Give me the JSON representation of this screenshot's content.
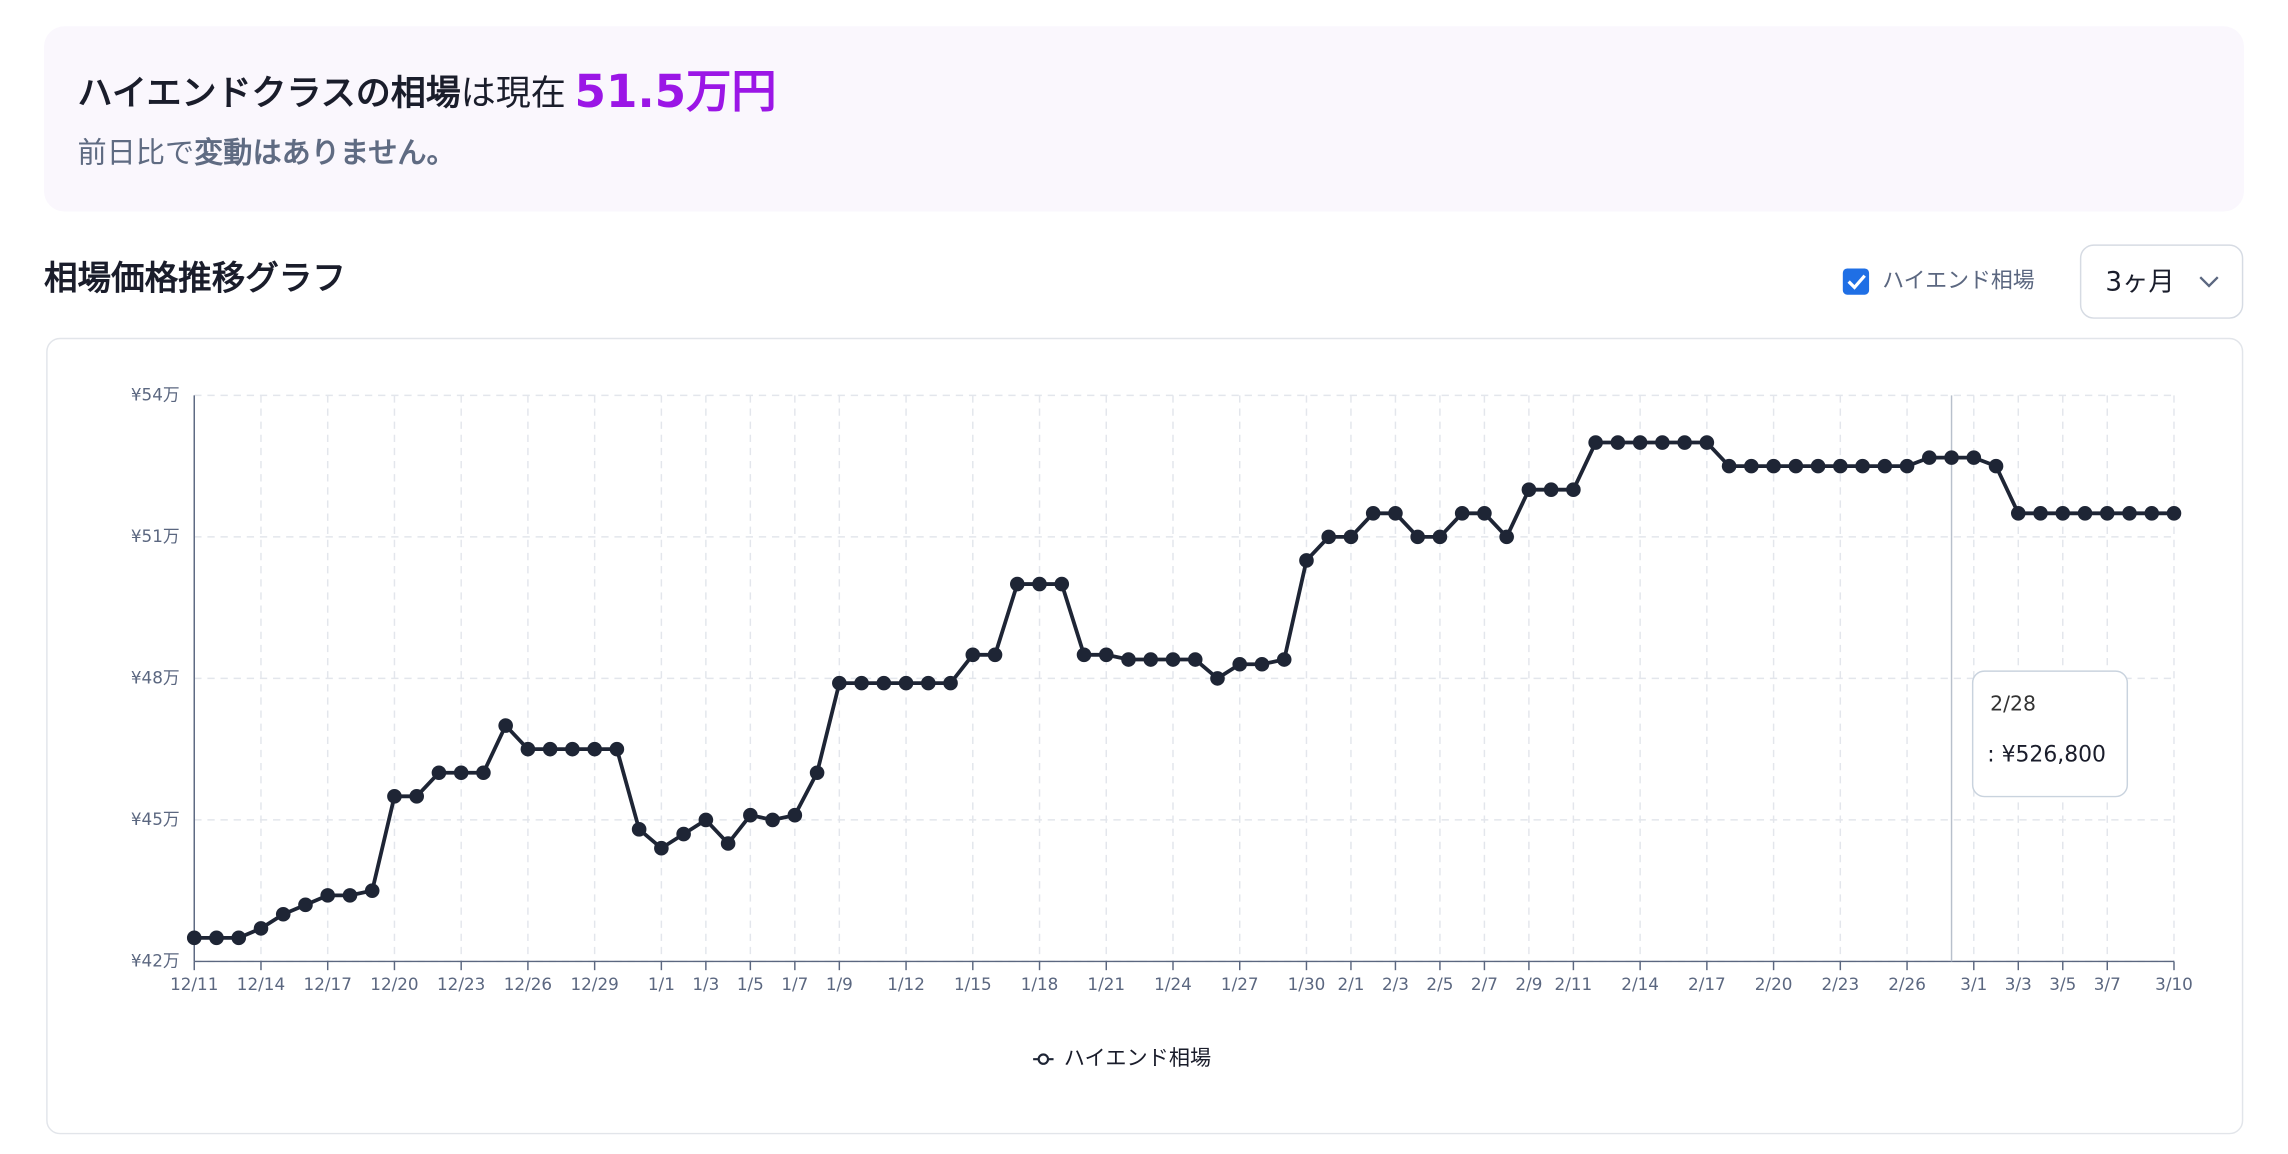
{
  "header": {
    "title_strong": "ハイエンドクラスの相場",
    "title_mid": "は現在",
    "price": "51.5万円",
    "sub_lead": "前日比で",
    "sub_strong": "変動はありません。"
  },
  "section_title": "相場価格推移グラフ",
  "controls": {
    "toggle_label": "ハイエンド相場",
    "toggle_checked": true,
    "range": "3ヶ月"
  },
  "chart_data": {
    "type": "line",
    "categories": [
      "12/11",
      null,
      null,
      "12/14",
      null,
      null,
      "12/17",
      null,
      null,
      "12/20",
      null,
      null,
      "12/23",
      null,
      null,
      "12/26",
      null,
      null,
      "12/29",
      null,
      null,
      "1/1",
      null,
      "1/3",
      null,
      "1/5",
      null,
      "1/7",
      null,
      "1/9",
      null,
      null,
      "1/12",
      null,
      null,
      "1/15",
      null,
      null,
      "1/18",
      null,
      null,
      "1/21",
      null,
      null,
      "1/24",
      null,
      null,
      "1/27",
      null,
      null,
      "1/30",
      null,
      "2/1",
      null,
      "2/3",
      null,
      "2/5",
      null,
      "2/7",
      null,
      "2/9",
      null,
      "2/11",
      null,
      null,
      "2/14",
      null,
      null,
      "2/17",
      null,
      null,
      "2/20",
      null,
      null,
      "2/23",
      null,
      null,
      "2/26",
      null,
      null,
      "3/1",
      null,
      "3/3",
      null,
      "3/5",
      null,
      "3/7",
      null,
      null,
      "3/10"
    ],
    "series": [
      {
        "name": "ハイエンド相場",
        "color": "#1e2535",
        "values": [
          425000,
          425000,
          425000,
          427000,
          430000,
          432000,
          434000,
          434000,
          435000,
          455000,
          455000,
          460000,
          460000,
          460000,
          470000,
          465000,
          465000,
          465000,
          465000,
          465000,
          448000,
          444000,
          447000,
          450000,
          445000,
          451000,
          450000,
          451000,
          460000,
          479000,
          479000,
          479000,
          479000,
          479000,
          479000,
          485000,
          485000,
          500000,
          500000,
          500000,
          485000,
          485000,
          484000,
          484000,
          484000,
          484000,
          480000,
          483000,
          483000,
          484000,
          505000,
          510000,
          510000,
          515000,
          515000,
          510000,
          510000,
          515000,
          515000,
          510000,
          520000,
          520000,
          520000,
          530000,
          530000,
          530000,
          530000,
          530000,
          530000,
          525000,
          525000,
          525000,
          525000,
          525000,
          525000,
          525000,
          525000,
          525000,
          526800,
          526800,
          526800,
          525000,
          515000,
          515000,
          515000,
          515000,
          515000,
          515000,
          515000,
          515000
        ]
      }
    ],
    "ylim": [
      420000,
      540000
    ],
    "yticks": [
      {
        "value": 420000,
        "label": "¥42万"
      },
      {
        "value": 450000,
        "label": "¥45万"
      },
      {
        "value": 480000,
        "label": "¥48万"
      },
      {
        "value": 510000,
        "label": "¥51万"
      },
      {
        "value": 540000,
        "label": "¥54万"
      }
    ],
    "grid": true,
    "tooltip": {
      "title": "2/28",
      "text": ": ¥526,800"
    }
  }
}
